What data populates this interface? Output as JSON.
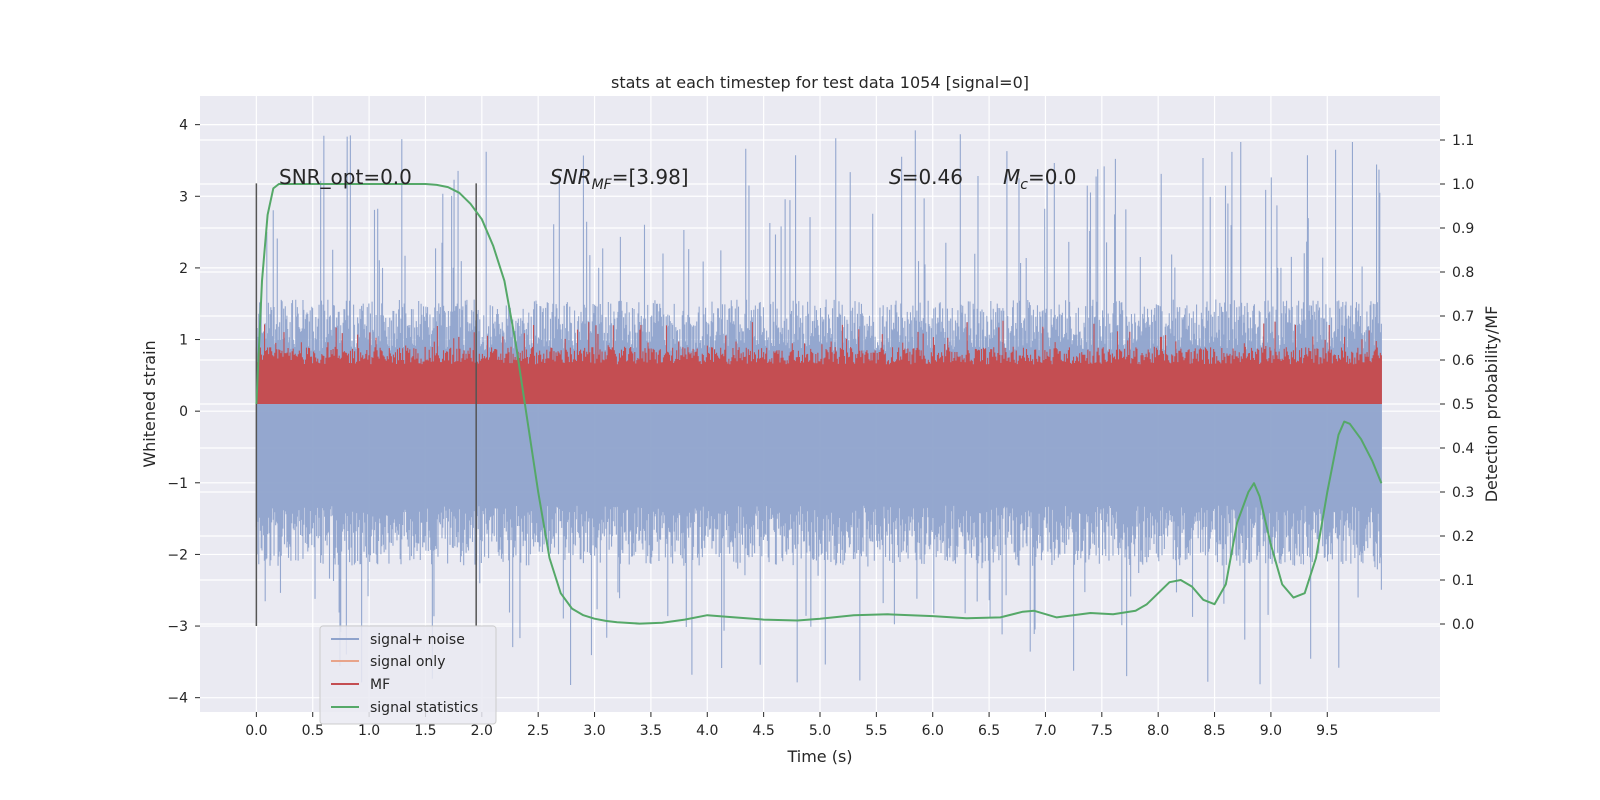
{
  "chart_data": {
    "type": "line",
    "title": "stats at each timestep for test data 1054 [signal=0]",
    "xlabel": "Time (s)",
    "ylabel": "Whitened strain",
    "ylabel_right": "Detection probability/MF",
    "xlim": [
      -0.5,
      10.5
    ],
    "ylim": [
      -4.2,
      4.4
    ],
    "ylim_right": [
      -0.2,
      1.2
    ],
    "xticks": [
      "0.0",
      "0.5",
      "1.0",
      "1.5",
      "2.0",
      "2.5",
      "3.0",
      "3.5",
      "4.0",
      "4.5",
      "5.0",
      "5.5",
      "6.0",
      "6.5",
      "7.0",
      "7.5",
      "8.0",
      "8.5",
      "9.0",
      "9.5"
    ],
    "yticks_left": [
      "−4",
      "−3",
      "−2",
      "−1",
      "0",
      "1",
      "2",
      "3",
      "4"
    ],
    "yticks_right": [
      "0.0",
      "0.1",
      "0.2",
      "0.3",
      "0.4",
      "0.5",
      "0.6",
      "0.7",
      "0.8",
      "0.9",
      "1.0",
      "1.1"
    ],
    "grid": true,
    "legend_position": "lower-left",
    "annotations": {
      "snr_opt": "SNR_opt=0.0",
      "snr_mf_base": "SNR",
      "snr_mf_sub": "MF",
      "snr_mf_value": "=[3.98]",
      "s_label": "S",
      "s_value": "=0.46",
      "mc_label": "M",
      "mc_sub": "c",
      "mc_value": "=0.0"
    },
    "markers": {
      "vlines_x": [
        0.0,
        1.95
      ]
    },
    "series": [
      {
        "name": "signal+ noise",
        "color": "#8fa3cc",
        "axis": "left",
        "envelope": {
          "x_start": 0.0,
          "x_end": 9.98,
          "typical_abs": 1.2,
          "peak_max": 4.05,
          "peak_min": -3.85
        }
      },
      {
        "name": "signal only",
        "color": "#e8a48a",
        "axis": "left",
        "values": []
      },
      {
        "name": "MF",
        "color": "#c44e52",
        "axis": "right",
        "envelope": {
          "x_start": 0.0,
          "x_end": 9.98,
          "low": 0.5,
          "typical_high": 0.63,
          "peak_max": 0.69
        }
      },
      {
        "name": "signal statistics",
        "color": "#55a868",
        "axis": "right",
        "x": [
          0.0,
          0.05,
          0.1,
          0.15,
          0.2,
          0.3,
          0.5,
          0.8,
          1.0,
          1.2,
          1.4,
          1.5,
          1.6,
          1.7,
          1.8,
          1.9,
          2.0,
          2.1,
          2.2,
          2.3,
          2.4,
          2.5,
          2.6,
          2.7,
          2.8,
          2.9,
          3.0,
          3.1,
          3.2,
          3.4,
          3.6,
          3.8,
          4.0,
          4.2,
          4.5,
          4.8,
          5.0,
          5.3,
          5.6,
          6.0,
          6.3,
          6.6,
          6.8,
          6.9,
          7.1,
          7.4,
          7.6,
          7.8,
          7.9,
          8.0,
          8.1,
          8.2,
          8.3,
          8.4,
          8.5,
          8.6,
          8.7,
          8.8,
          8.85,
          8.9,
          9.0,
          9.1,
          9.2,
          9.3,
          9.4,
          9.5,
          9.6,
          9.65,
          9.7,
          9.8,
          9.9,
          9.98
        ],
        "y": [
          0.5,
          0.78,
          0.93,
          0.99,
          1.0,
          1.0,
          1.0,
          1.0,
          1.0,
          1.0,
          1.0,
          1.0,
          0.998,
          0.993,
          0.98,
          0.955,
          0.92,
          0.86,
          0.78,
          0.64,
          0.47,
          0.3,
          0.15,
          0.07,
          0.035,
          0.02,
          0.012,
          0.007,
          0.004,
          0.001,
          0.003,
          0.01,
          0.02,
          0.016,
          0.01,
          0.008,
          0.012,
          0.02,
          0.022,
          0.018,
          0.013,
          0.015,
          0.028,
          0.03,
          0.015,
          0.025,
          0.022,
          0.03,
          0.045,
          0.07,
          0.095,
          0.1,
          0.085,
          0.055,
          0.045,
          0.09,
          0.23,
          0.3,
          0.32,
          0.29,
          0.18,
          0.09,
          0.06,
          0.07,
          0.15,
          0.3,
          0.43,
          0.46,
          0.455,
          0.42,
          0.37,
          0.32
        ]
      }
    ]
  }
}
